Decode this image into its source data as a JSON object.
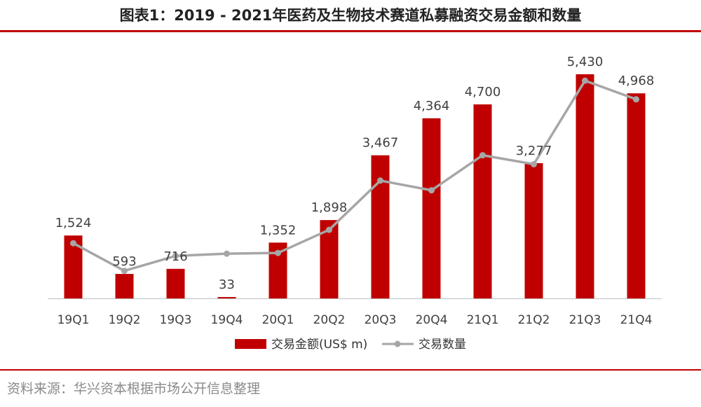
{
  "title": "图表1：2019 - 2021年医药及生物技术赛道私募融资交易金额和数量",
  "source": "资料来源：华兴资本根据市场公开信息整理",
  "colors": {
    "bar": "#c00000",
    "line": "#a6a6a6",
    "rule": "#c00000"
  },
  "chart_data": {
    "type": "bar",
    "categories": [
      "19Q1",
      "19Q2",
      "19Q3",
      "19Q4",
      "20Q1",
      "20Q2",
      "20Q3",
      "20Q4",
      "21Q1",
      "21Q2",
      "21Q3",
      "21Q4"
    ],
    "series": [
      {
        "name": "交易金额(US$ m)",
        "type": "bar",
        "values": [
          1524,
          593,
          716,
          33,
          1352,
          1898,
          3467,
          4364,
          4700,
          3277,
          5430,
          4968
        ],
        "labels": [
          "1,524",
          "593",
          "716",
          "33",
          "1,352",
          "1,898",
          "3,467",
          "4,364",
          "4,700",
          "3,277",
          "5,430",
          "4,968"
        ]
      },
      {
        "name": "交易数量",
        "type": "line",
        "values": [
          74,
          37,
          57,
          60,
          61,
          92,
          158,
          145,
          192,
          180,
          292,
          267
        ]
      }
    ],
    "ylim": [
      0,
      5600
    ],
    "line_ylim": [
      0,
      310
    ],
    "grid": false,
    "legend_position": "bottom"
  }
}
